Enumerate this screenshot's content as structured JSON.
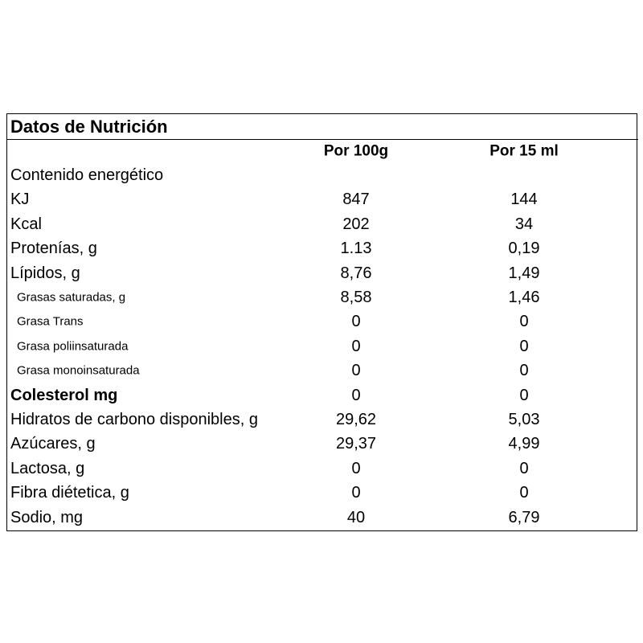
{
  "table": {
    "title": "Datos de Nutrición",
    "columns": [
      "Por 100g",
      "Por 15 ml"
    ],
    "rows": [
      [
        "Contenido energético"
      ],
      [
        "KJ",
        "847",
        "144"
      ],
      [
        "Kcal",
        "202",
        "34"
      ],
      [
        "Protenías, g",
        "1.13",
        "0,19"
      ],
      [
        "Lípidos, g",
        "8,76",
        "1,49"
      ],
      [
        "Grasas saturadas, g",
        "8,58",
        "1,46"
      ],
      [
        "Grasa Trans",
        "0",
        "0"
      ],
      [
        "Grasa poliinsaturada",
        "0",
        "0"
      ],
      [
        "Grasa monoinsaturada",
        "0",
        "0"
      ],
      [
        "Colesterol mg",
        "0",
        "0"
      ],
      [
        "Hidratos de carbono disponibles, g",
        "29,62",
        "5,03"
      ],
      [
        "Azúcares, g",
        "29,37",
        "4,99"
      ],
      [
        "Lactosa, g",
        "0",
        "0"
      ],
      [
        "Fibra diétetica, g",
        "0",
        "0"
      ],
      [
        "Sodio, mg",
        "40",
        "6,79"
      ]
    ]
  }
}
